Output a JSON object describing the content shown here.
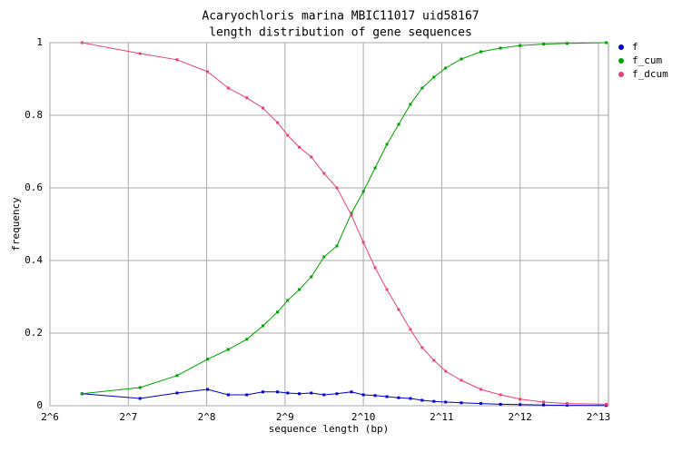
{
  "chart_data": {
    "type": "line",
    "title": "Acaryochloris marina MBIC11017 uid58167",
    "subtitle": "length distribution of gene sequences",
    "xlabel": "sequence length (bp)",
    "ylabel": "frequency",
    "xscale": "log",
    "grid": true,
    "legend": "right",
    "xlim": [
      64,
      8950
    ],
    "ylim": [
      0,
      1
    ],
    "xticks": [
      {
        "value": 64,
        "label": "2^6"
      },
      {
        "value": 128,
        "label": "2^7"
      },
      {
        "value": 256,
        "label": "2^8"
      },
      {
        "value": 512,
        "label": "2^9"
      },
      {
        "value": 1024,
        "label": "2^10"
      },
      {
        "value": 2048,
        "label": "2^11"
      },
      {
        "value": 4096,
        "label": "2^12"
      },
      {
        "value": 8192,
        "label": "2^13"
      }
    ],
    "yticks": [
      0,
      0.2,
      0.4,
      0.6,
      0.8,
      1
    ],
    "x": [
      85,
      142,
      197,
      258,
      310,
      365,
      421,
      479,
      524,
      581,
      646,
      723,
      810,
      921,
      1024,
      1136,
      1261,
      1399,
      1552,
      1722,
      1911,
      2120,
      2435,
      2896,
      3444,
      4096,
      5043,
      6208,
      8780
    ],
    "series": [
      {
        "name": "f",
        "color": "#0000cc",
        "values": [
          0.033,
          0.02,
          0.035,
          0.045,
          0.03,
          0.03,
          0.038,
          0.038,
          0.035,
          0.033,
          0.035,
          0.03,
          0.033,
          0.038,
          0.03,
          0.028,
          0.025,
          0.022,
          0.02,
          0.015,
          0.012,
          0.01,
          0.008,
          0.006,
          0.004,
          0.003,
          0.002,
          0.001,
          0.0005
        ]
      },
      {
        "name": "f_cum",
        "color": "#00a000",
        "values": [
          0.033,
          0.05,
          0.083,
          0.128,
          0.155,
          0.183,
          0.22,
          0.258,
          0.29,
          0.32,
          0.355,
          0.41,
          0.44,
          0.53,
          0.59,
          0.655,
          0.72,
          0.775,
          0.83,
          0.875,
          0.905,
          0.93,
          0.955,
          0.975,
          0.985,
          0.992,
          0.996,
          0.998,
          1.0
        ]
      },
      {
        "name": "f_dcum",
        "color": "#e8407a",
        "values": [
          1.0,
          0.97,
          0.953,
          0.92,
          0.875,
          0.848,
          0.82,
          0.78,
          0.745,
          0.712,
          0.685,
          0.64,
          0.6,
          0.525,
          0.45,
          0.38,
          0.32,
          0.265,
          0.21,
          0.16,
          0.125,
          0.095,
          0.07,
          0.045,
          0.03,
          0.018,
          0.01,
          0.006,
          0.004
        ]
      }
    ]
  }
}
